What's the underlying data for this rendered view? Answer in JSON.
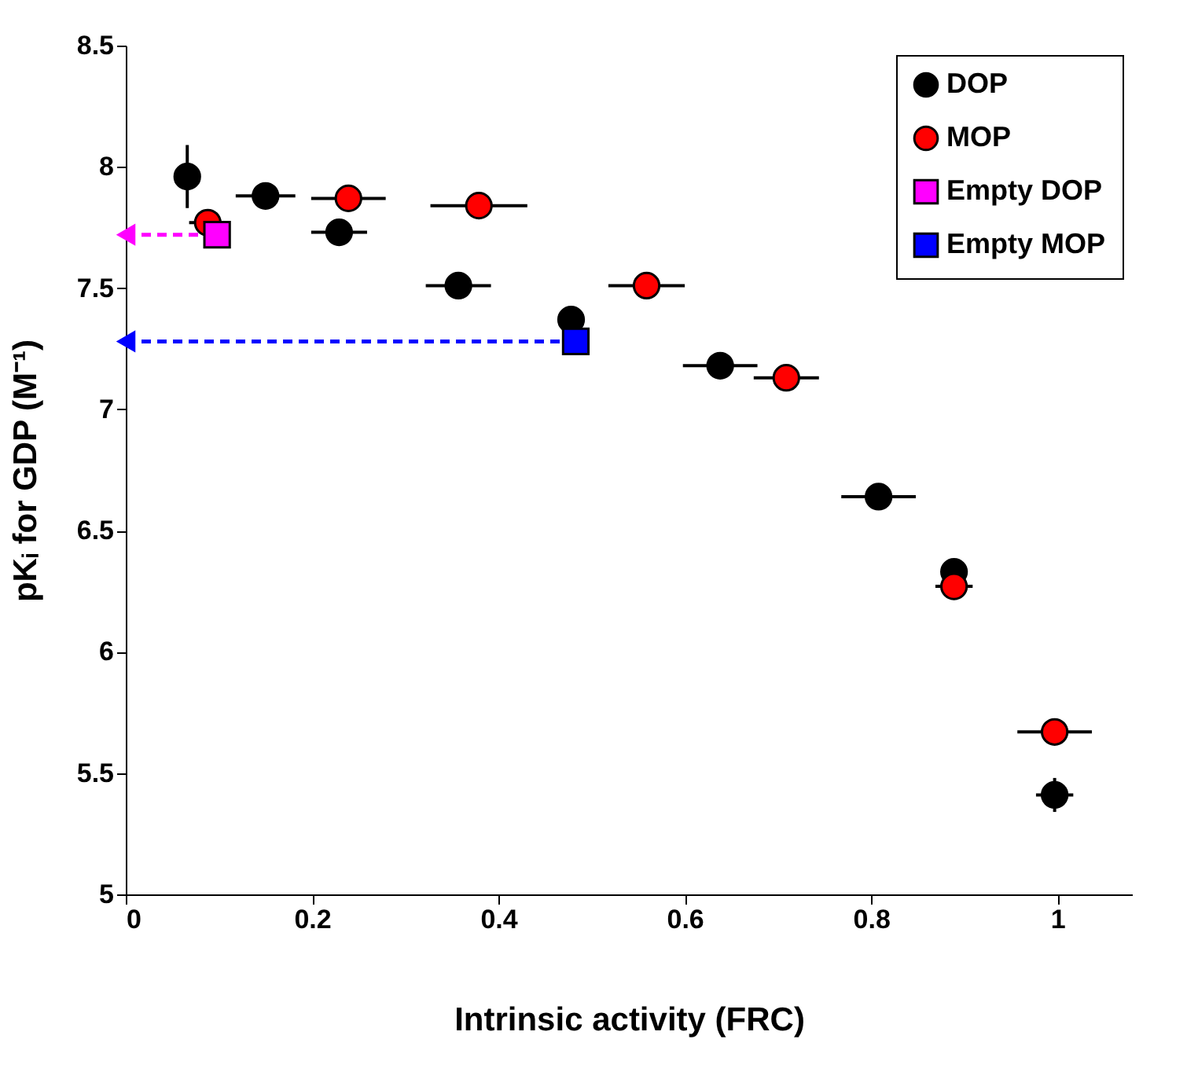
{
  "chart_data": {
    "type": "scatter",
    "xlabel": "Intrinsic activity (FRC)",
    "ylabel": "pKᵢ for GDP (M⁻¹)",
    "xlim": [
      0,
      1.08
    ],
    "xticks": [
      0,
      0.2,
      0.4,
      0.6,
      0.8,
      1
    ],
    "ylim": [
      5,
      8.5
    ],
    "yticks": [
      5,
      5.5,
      6,
      6.5,
      7,
      7.5,
      8,
      8.5
    ],
    "grid": false,
    "legend": "top right",
    "series": [
      {
        "name": "DOP",
        "color": "#000000",
        "marker": "circle",
        "x": [
          0.066,
          0.15,
          0.229,
          0.357,
          0.478,
          0.638,
          0.808,
          0.889,
          0.997
        ],
        "values": [
          7.96,
          7.88,
          7.73,
          7.51,
          7.37,
          7.18,
          6.64,
          6.33,
          5.41
        ],
        "errors": [
          0.13,
          null,
          null,
          null,
          null,
          null,
          null,
          null,
          0.07
        ],
        "xerrors": [
          0.01,
          0.032,
          0.03,
          0.035,
          null,
          0.04,
          0.04,
          null,
          0.02
        ]
      },
      {
        "name": "MOP",
        "color": "#ff0000",
        "marker": "circle",
        "x": [
          0.088,
          0.239,
          0.379,
          0.559,
          0.709,
          0.889,
          0.997
        ],
        "values": [
          7.77,
          7.87,
          7.84,
          7.51,
          7.13,
          6.27,
          5.67
        ],
        "errors": [
          null,
          null,
          0.05,
          null,
          0.04,
          null,
          null
        ],
        "xerrors": [
          0.02,
          0.04,
          0.052,
          0.041,
          0.035,
          0.02,
          0.04
        ]
      },
      {
        "name": "Empty DOP",
        "color": "#ff00ff",
        "marker": "square",
        "x": [
          0.098
        ],
        "values": [
          7.72
        ],
        "errors": [
          0.05
        ]
      },
      {
        "name": "Empty MOP",
        "color": "#0000ff",
        "marker": "square",
        "x": [
          0.483
        ],
        "values": [
          7.28
        ]
      },
      {
        "type": "line",
        "color": "#ff00ff",
        "line_style": "dashed",
        "marker": "triangle",
        "x": [
          0,
          0.098
        ],
        "values": [
          7.72,
          7.72
        ]
      },
      {
        "type": "line",
        "color": "#0000ff",
        "line_style": "dashed",
        "marker": "triangle",
        "x": [
          0,
          0.483
        ],
        "values": [
          7.28,
          7.28
        ]
      }
    ]
  }
}
